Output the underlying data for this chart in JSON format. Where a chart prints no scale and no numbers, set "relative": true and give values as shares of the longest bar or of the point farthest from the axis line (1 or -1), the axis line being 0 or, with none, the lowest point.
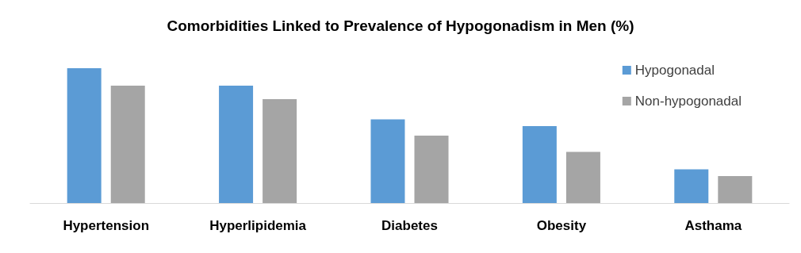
{
  "chart_data": {
    "type": "bar",
    "title": "Comorbidities Linked to Prevalence of Hypogonadism in Men (%)",
    "categories": [
      "Hypertension",
      "Hyperlipidemia",
      "Diabetes",
      "Obesity",
      "Asthama"
    ],
    "relative": true,
    "legend": "top right",
    "series": [
      {
        "name": "Hypogonadal",
        "color": "#5b9bd5",
        "values": [
          1,
          0.87,
          0.62,
          0.57,
          0.25
        ]
      },
      {
        "name": "Non-hypogonadal",
        "color": "#a5a5a5",
        "values": [
          0.87,
          0.77,
          0.5,
          0.38,
          0.2
        ]
      }
    ]
  }
}
